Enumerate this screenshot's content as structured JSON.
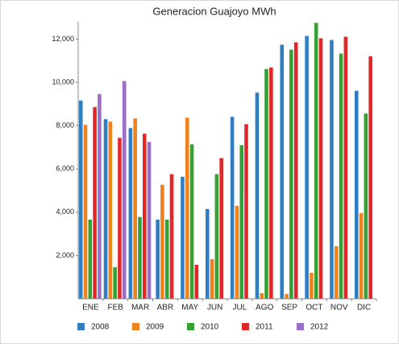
{
  "chart_data": {
    "type": "bar",
    "title": "Generacion Guajoyo MWh",
    "categories": [
      "ENE",
      "FEB",
      "MAR",
      "ABR",
      "MAY",
      "JUN",
      "JUL",
      "AGO",
      "SEP",
      "OCT",
      "NOV",
      "DIC"
    ],
    "series": [
      {
        "name": "2008",
        "color": "#2f7ec4",
        "values": [
          9160,
          8300,
          7890,
          3660,
          5640,
          4150,
          8410,
          9530,
          11740,
          12150,
          11960,
          9610
        ]
      },
      {
        "name": "2009",
        "color": "#f0821e",
        "values": [
          8040,
          8190,
          8340,
          5270,
          8370,
          1830,
          4300,
          260,
          220,
          1200,
          2430,
          3960
        ]
      },
      {
        "name": "2010",
        "color": "#35a033",
        "values": [
          3660,
          1460,
          3780,
          3660,
          7140,
          5760,
          7100,
          10620,
          11510,
          12750,
          11330,
          8560
        ]
      },
      {
        "name": "2011",
        "color": "#e0282a",
        "values": [
          8860,
          7440,
          7630,
          5760,
          1570,
          6500,
          8070,
          10690,
          11850,
          12040,
          12110,
          11210
        ]
      },
      {
        "name": "2012",
        "color": "#9b6fc8",
        "values": [
          9460,
          10060,
          7250,
          null,
          null,
          null,
          null,
          null,
          null,
          null,
          null,
          null
        ]
      }
    ],
    "ylim": [
      0,
      12800
    ],
    "yticks": [
      {
        "value": 2000,
        "label": "2,000"
      },
      {
        "value": 4000,
        "label": "4,000"
      },
      {
        "value": 6000,
        "label": "6,000"
      },
      {
        "value": 8000,
        "label": "8,000"
      },
      {
        "value": 10000,
        "label": "10,000"
      },
      {
        "value": 12000,
        "label": "12,000"
      }
    ],
    "legend": "bottom"
  }
}
